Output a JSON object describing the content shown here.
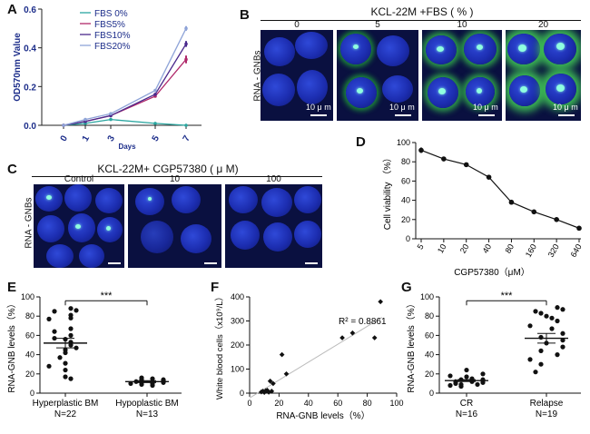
{
  "colors": {
    "fbs0": "#2aa6a0",
    "fbs5": "#b0286a",
    "fbs10": "#4b2a8c",
    "fbs20": "#8fa4d8",
    "ink": "#111111"
  },
  "panels": {
    "a": "A",
    "b": "B",
    "c": "C",
    "d": "D",
    "e": "E",
    "f": "F",
    "g": "G"
  },
  "panel_b": {
    "title": "KCL-22M +FBS ( % )",
    "side_label": "RNA - GNBs",
    "scale_label": "10 μ m",
    "columns": [
      "0",
      "5",
      "10",
      "20"
    ]
  },
  "panel_c": {
    "title": "KCL-22M+ CGP57380 ( μ M)",
    "side_label": "RNA - GNBs",
    "columns": [
      "Control",
      "10",
      "100"
    ]
  },
  "chart_data": [
    {
      "id": "A",
      "type": "line",
      "x": [
        0,
        1,
        3,
        5,
        7
      ],
      "xtick_labels": [
        "0",
        "1",
        "3",
        "5",
        "7"
      ],
      "xlabel": "Days",
      "ylabel": "OD570nm Value",
      "ylim": [
        0,
        0.6
      ],
      "yticks": [
        "0.0",
        "0.2",
        "0.4",
        "0.6"
      ],
      "series": [
        {
          "name": "FBS 0%",
          "values": [
            0.0,
            0.01,
            0.03,
            0.01,
            0.0
          ],
          "errors": [
            0,
            0,
            0,
            0,
            0
          ]
        },
        {
          "name": "FBS5%",
          "values": [
            0.0,
            0.02,
            0.05,
            0.15,
            0.34
          ],
          "errors": [
            0,
            0,
            0,
            0.005,
            0.02
          ]
        },
        {
          "name": "FBS10%",
          "values": [
            0.0,
            0.02,
            0.05,
            0.16,
            0.42
          ],
          "errors": [
            0,
            0,
            0,
            0.005,
            0.015
          ]
        },
        {
          "name": "FBS20%",
          "values": [
            0.0,
            0.03,
            0.06,
            0.18,
            0.5
          ],
          "errors": [
            0,
            0,
            0,
            0.005,
            0.012
          ]
        }
      ]
    },
    {
      "id": "D",
      "type": "line",
      "x": [
        5,
        10,
        20,
        40,
        80,
        160,
        320,
        640
      ],
      "xtick_labels": [
        "5",
        "10",
        "20",
        "40",
        "80",
        "160",
        "320",
        "640"
      ],
      "xlabel": "CGP57380（μM）",
      "ylabel": "Cell viability （%）",
      "ylim": [
        0,
        100
      ],
      "yticks": [
        "0",
        "20",
        "40",
        "60",
        "80",
        "100"
      ],
      "series": [
        {
          "name": "Cell viability",
          "values": [
            92,
            83,
            77,
            64,
            38,
            28,
            20,
            11
          ],
          "errors": [
            3,
            0,
            0,
            2,
            0,
            0,
            0,
            0
          ]
        }
      ]
    },
    {
      "id": "E",
      "type": "scatter",
      "categories": [
        "Hyperplastic BM",
        "Hypoplastic BM"
      ],
      "n_labels": [
        "N=22",
        "N=13"
      ],
      "ylabel": "RNA-GNB levels（%）",
      "ylim": [
        0,
        100
      ],
      "yticks": [
        "0",
        "20",
        "40",
        "60",
        "80",
        "100"
      ],
      "significance": "***",
      "series": [
        {
          "name": "Hyperplastic BM",
          "mean": 52,
          "sem": 5,
          "values": [
            88,
            86,
            85,
            81,
            78,
            77,
            67,
            64,
            60,
            57,
            56,
            53,
            50,
            47,
            45,
            42,
            37,
            31,
            28,
            24,
            17,
            15
          ]
        },
        {
          "name": "Hypoplastic BM",
          "mean": 12,
          "sem": 1,
          "values": [
            16,
            15,
            14,
            14,
            13,
            12,
            12,
            11,
            11,
            10,
            10,
            9,
            8
          ]
        }
      ]
    },
    {
      "id": "F",
      "type": "scatter",
      "xlabel": "RNA-GNB levels（%）",
      "ylabel": "White blood cells（x10⁹/L）",
      "xlim": [
        0,
        100
      ],
      "ylim": [
        0,
        400
      ],
      "xticks": [
        "0",
        "20",
        "40",
        "60",
        "80",
        "100"
      ],
      "yticks": [
        "0",
        "100",
        "200",
        "300",
        "400"
      ],
      "annotation": "R² = 0.8861",
      "x": [
        8,
        9,
        10,
        11,
        12,
        13,
        14,
        15,
        16,
        22,
        25,
        63,
        70,
        85,
        89
      ],
      "y": [
        5,
        8,
        3,
        10,
        12,
        4,
        50,
        8,
        40,
        160,
        80,
        230,
        250,
        230,
        380
      ],
      "fit_line": [
        [
          0,
          -20
        ],
        [
          90,
          315
        ]
      ]
    },
    {
      "id": "G",
      "type": "scatter",
      "categories": [
        "CR",
        "Relapse"
      ],
      "n_labels": [
        "N=16",
        "N=19"
      ],
      "ylabel": "RNA-GNB levels（%）",
      "ylim": [
        0,
        100
      ],
      "yticks": [
        "0",
        "20",
        "40",
        "60",
        "80",
        "100"
      ],
      "significance": "***",
      "series": [
        {
          "name": "CR",
          "mean": 13,
          "sem": 1,
          "values": [
            24,
            20,
            18,
            17,
            15,
            14,
            14,
            13,
            12,
            12,
            11,
            10,
            9,
            9,
            8,
            7
          ]
        },
        {
          "name": "Relapse",
          "mean": 57,
          "sem": 5,
          "values": [
            89,
            87,
            85,
            83,
            80,
            78,
            75,
            70,
            67,
            62,
            58,
            55,
            52,
            48,
            44,
            40,
            35,
            30,
            22
          ]
        }
      ]
    }
  ]
}
